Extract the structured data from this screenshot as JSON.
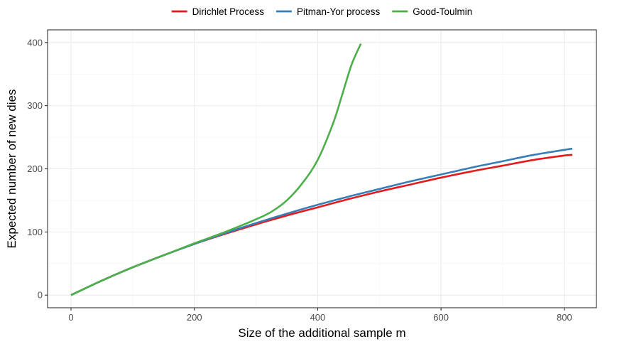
{
  "chart_data": {
    "type": "line",
    "title": "",
    "xlabel": "Size of the additional sample m",
    "ylabel": "Expected number of new dies",
    "xlim": [
      -38,
      852
    ],
    "ylim": [
      -20,
      420
    ],
    "x_ticks": [
      0,
      200,
      400,
      600,
      800
    ],
    "y_ticks": [
      0,
      100,
      200,
      300,
      400
    ],
    "x_tick_labels": [
      "0",
      "200",
      "400",
      "600",
      "800"
    ],
    "y_tick_labels": [
      "0",
      "100",
      "200",
      "300",
      "400"
    ],
    "grid": true,
    "legend_position": "top",
    "series": [
      {
        "name": "Dirichlet Process",
        "color": "#e41a1c",
        "x": [
          0,
          50,
          100,
          150,
          200,
          250,
          300,
          350,
          400,
          450,
          500,
          550,
          600,
          650,
          700,
          750,
          800,
          813
        ],
        "y": [
          0,
          23,
          44,
          63,
          81,
          97,
          112,
          126,
          139,
          152,
          164,
          175,
          186,
          196,
          205,
          214,
          221,
          222
        ]
      },
      {
        "name": "Pitman-Yor process",
        "color": "#377eb8",
        "x": [
          0,
          50,
          100,
          150,
          200,
          250,
          300,
          350,
          400,
          450,
          500,
          550,
          600,
          650,
          700,
          750,
          800,
          813
        ],
        "y": [
          0,
          23,
          44,
          63,
          81,
          98,
          114,
          129,
          143,
          156,
          168,
          180,
          191,
          202,
          212,
          222,
          230,
          232
        ]
      },
      {
        "name": "Good-Toulmin",
        "color": "#4daf4a",
        "x": [
          0,
          50,
          100,
          150,
          200,
          250,
          300,
          325,
          350,
          375,
          400,
          425,
          440,
          455,
          470
        ],
        "y": [
          0,
          23,
          44,
          63,
          82,
          100,
          120,
          132,
          150,
          177,
          214,
          272,
          318,
          365,
          398
        ]
      }
    ]
  }
}
